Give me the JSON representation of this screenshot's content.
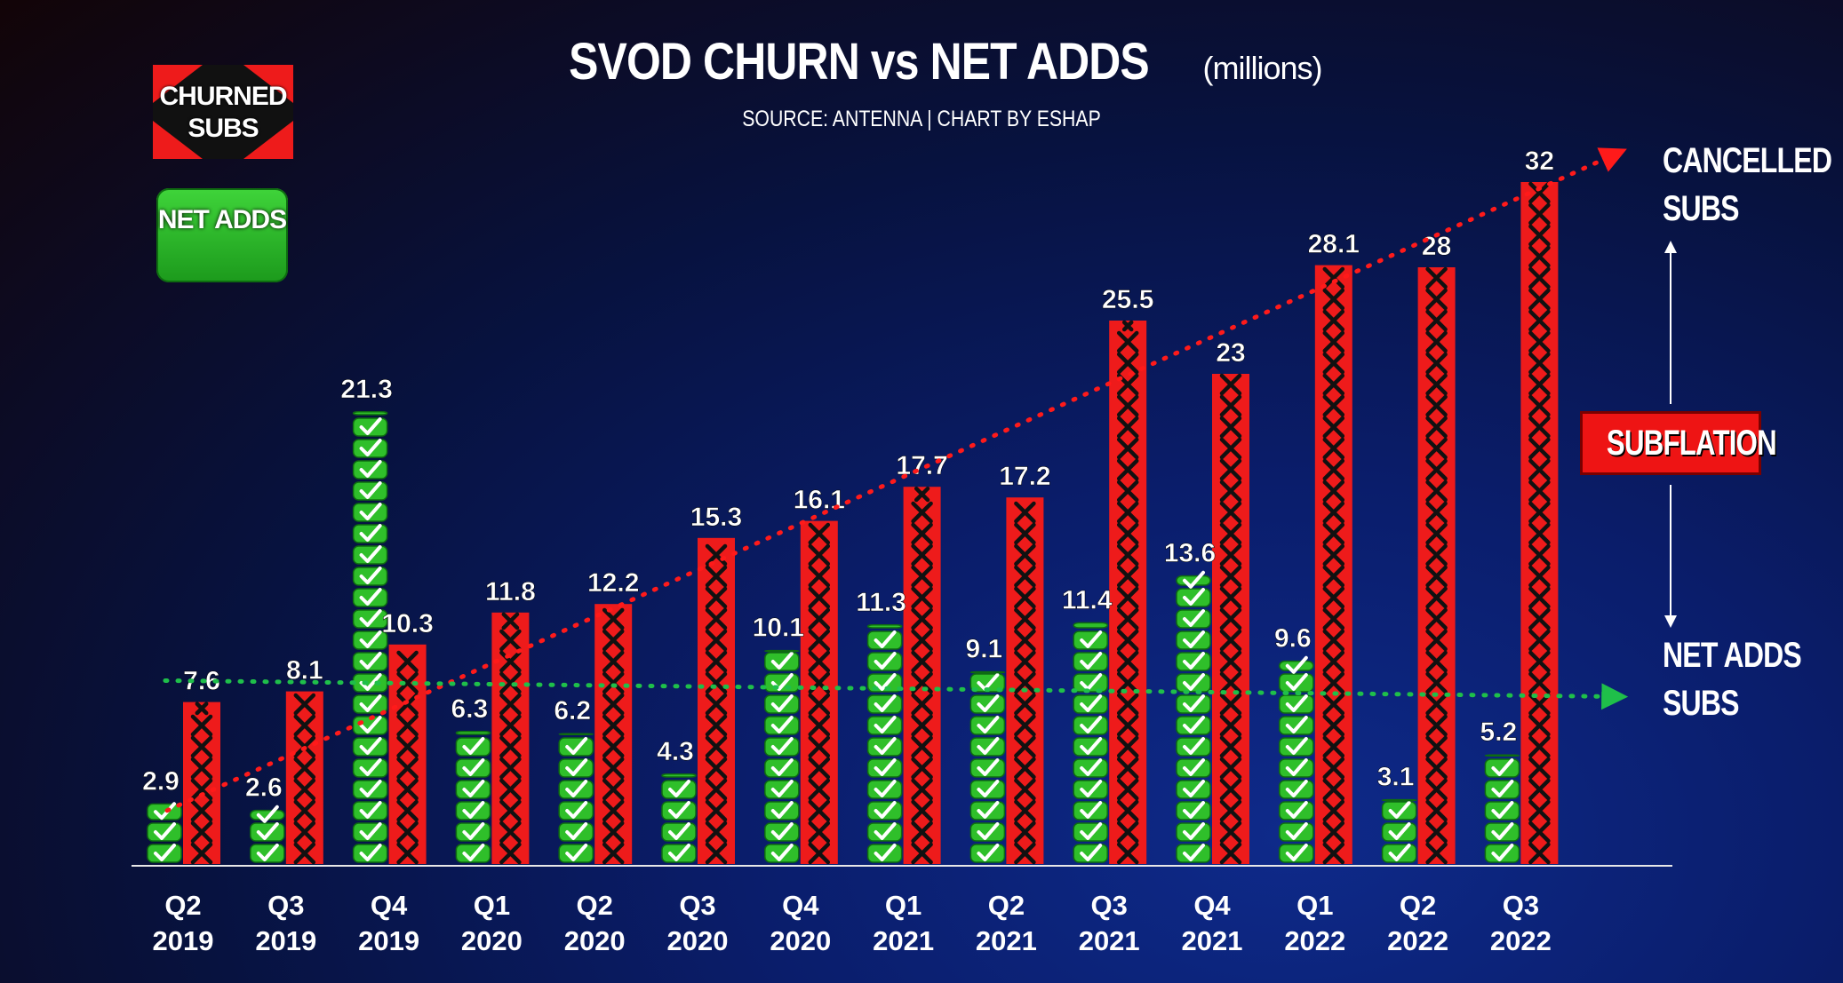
{
  "title": "SVOD CHURN vs NET ADDS",
  "title_unit": "(millions)",
  "subtitle": "SOURCE: ANTENNA | CHART BY ESHAP",
  "legend": {
    "churned": "CHURNED SUBS",
    "net_adds": "NET ADDS"
  },
  "annotations": {
    "cancelled_line1": "CANCELLED",
    "cancelled_line2": "SUBS",
    "net_adds_line1": "NET ADDS",
    "net_adds_line2": "SUBS",
    "subflation": "SUBFLATION"
  },
  "colors": {
    "churned": "#ee1b1b",
    "net_adds": "#2fbf2a",
    "churn_trend": "#ff1a1a",
    "net_trend": "#1fbf4a"
  },
  "chart_data": {
    "type": "bar",
    "categories": [
      [
        "Q2",
        "2019"
      ],
      [
        "Q3",
        "2019"
      ],
      [
        "Q4",
        "2019"
      ],
      [
        "Q1",
        "2020"
      ],
      [
        "Q2",
        "2020"
      ],
      [
        "Q3",
        "2020"
      ],
      [
        "Q4",
        "2020"
      ],
      [
        "Q1",
        "2021"
      ],
      [
        "Q2",
        "2021"
      ],
      [
        "Q3",
        "2021"
      ],
      [
        "Q4",
        "2021"
      ],
      [
        "Q1",
        "2022"
      ],
      [
        "Q2",
        "2022"
      ],
      [
        "Q3",
        "2022"
      ]
    ],
    "series": [
      {
        "name": "NET ADDS",
        "values": [
          2.9,
          2.6,
          21.3,
          6.3,
          6.2,
          4.3,
          10.1,
          11.3,
          9.1,
          11.4,
          13.6,
          9.6,
          3.1,
          5.2
        ]
      },
      {
        "name": "CHURNED SUBS",
        "values": [
          7.6,
          8.1,
          10.3,
          11.8,
          12.2,
          15.3,
          16.1,
          17.7,
          17.2,
          25.5,
          23,
          28.1,
          28,
          32
        ]
      }
    ],
    "labels": {
      "net": [
        "2.9",
        "2.6",
        "21.3",
        "6.3",
        "6.2",
        "4.3",
        "10.1",
        "11.3",
        "9.1",
        "11.4",
        "13.6",
        "9.6",
        "3.1",
        "5.2"
      ],
      "churn": [
        "7.6",
        "8.1",
        "10.3",
        "11.8",
        "12.2",
        "15.3",
        "16.1",
        "17.7",
        "17.2",
        "25.5",
        "23",
        "28.1",
        "28",
        "32"
      ]
    },
    "ylim": [
      0,
      32
    ],
    "legend_position": "top-left",
    "grid": false
  }
}
